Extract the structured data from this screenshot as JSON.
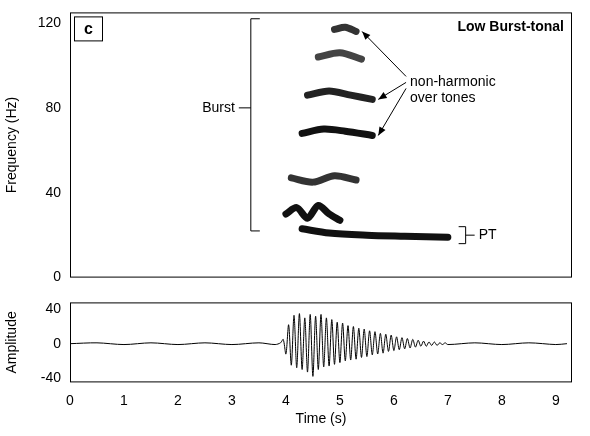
{
  "chart_data": [
    {
      "type": "line",
      "panel_label": "c",
      "title": "Low Burst-tonal",
      "y_label": "Frequency (Hz)",
      "annotations": [
        "Burst",
        "non-harmonic over tones",
        "PT"
      ],
      "xlim": [
        0,
        9.3
      ],
      "ylim": [
        0,
        125
      ],
      "yticks": [
        0,
        40,
        80,
        120
      ],
      "grid": false,
      "tick_labels": "y",
      "series": [
        {
          "color": "#111111",
          "marker": "none",
          "line_style": "solid",
          "x": [
            4.3,
            4.8,
            5.5,
            6.2,
            7.0
          ],
          "values": [
            23,
            21,
            20,
            19.5,
            19
          ]
        },
        {
          "color": "#111111",
          "marker": "none",
          "line_style": "solid",
          "x": [
            4.0,
            4.2,
            4.4,
            4.6,
            4.8,
            5.0
          ],
          "values": [
            30,
            33,
            28,
            34,
            30,
            27
          ]
        },
        {
          "color": "#333333",
          "marker": "none",
          "line_style": "solid",
          "x": [
            4.1,
            4.5,
            4.9,
            5.3
          ],
          "values": [
            47,
            45,
            48,
            46
          ]
        },
        {
          "color": "#111111",
          "marker": "none",
          "line_style": "solid",
          "x": [
            4.3,
            4.7,
            5.1,
            5.6
          ],
          "values": [
            68,
            70,
            69,
            67
          ]
        },
        {
          "color": "#222222",
          "marker": "none",
          "line_style": "solid",
          "x": [
            4.4,
            4.8,
            5.2,
            5.6
          ],
          "values": [
            86,
            88,
            86,
            84
          ]
        },
        {
          "color": "#444444",
          "marker": "none",
          "line_style": "solid",
          "x": [
            4.6,
            5.0,
            5.4
          ],
          "values": [
            104,
            106,
            103
          ]
        },
        {
          "color": "#333333",
          "marker": "none",
          "line_style": "solid",
          "x": [
            4.9,
            5.1,
            5.3
          ],
          "values": [
            117,
            118,
            116
          ]
        }
      ]
    },
    {
      "type": "line",
      "x_label": "Time (s)",
      "y_label": "Amplitude",
      "xlim": [
        0,
        9.3
      ],
      "xticks": [
        0,
        1,
        2,
        3,
        4,
        5,
        6,
        7,
        8,
        9
      ],
      "ylim": [
        -45,
        48
      ],
      "yticks": [
        -40,
        0,
        40
      ],
      "grid": false,
      "series": [
        {
          "color": "#000000",
          "marker": "none",
          "line_style": "solid",
          "x": [
            0,
            0.5,
            1,
            1.5,
            2,
            2.5,
            3,
            3.5,
            3.8,
            3.9,
            3.95,
            4.0,
            4.05,
            4.1,
            4.15,
            4.2,
            4.25,
            4.3,
            4.35,
            4.4,
            4.45,
            4.5,
            4.55,
            4.6,
            4.65,
            4.7,
            4.75,
            4.8,
            4.85,
            4.9,
            4.95,
            5.0,
            5.05,
            5.1,
            5.15,
            5.2,
            5.25,
            5.3,
            5.35,
            5.4,
            5.45,
            5.5,
            5.55,
            5.6,
            5.65,
            5.7,
            5.75,
            5.8,
            5.85,
            5.9,
            5.95,
            6.0,
            6.05,
            6.1,
            6.15,
            6.2,
            6.25,
            6.3,
            6.35,
            6.4,
            6.45,
            6.5,
            6.55,
            6.6,
            6.65,
            6.7,
            6.75,
            6.8,
            6.85,
            6.9,
            6.95,
            7.0,
            7.5,
            8,
            8.5,
            9,
            9.2
          ],
          "values": [
            0,
            1,
            -1,
            1,
            -1,
            1,
            -1,
            1,
            -1,
            1,
            5,
            -12,
            22,
            -25,
            33,
            -28,
            35,
            -30,
            30,
            -33,
            34,
            -38,
            32,
            -30,
            34,
            -27,
            30,
            -26,
            28,
            -24,
            25,
            -22,
            24,
            -20,
            21,
            -19,
            20,
            -18,
            18,
            -16,
            17,
            -15,
            15,
            -13,
            14,
            -12,
            12,
            -11,
            11,
            -9,
            10,
            -8,
            8,
            -7,
            7,
            -6,
            6,
            -5,
            5,
            -4,
            4,
            -3,
            3,
            -3,
            2,
            -2,
            2,
            -2,
            1,
            -1,
            1,
            -1,
            1,
            -1,
            1,
            -1,
            0
          ]
        }
      ]
    }
  ]
}
